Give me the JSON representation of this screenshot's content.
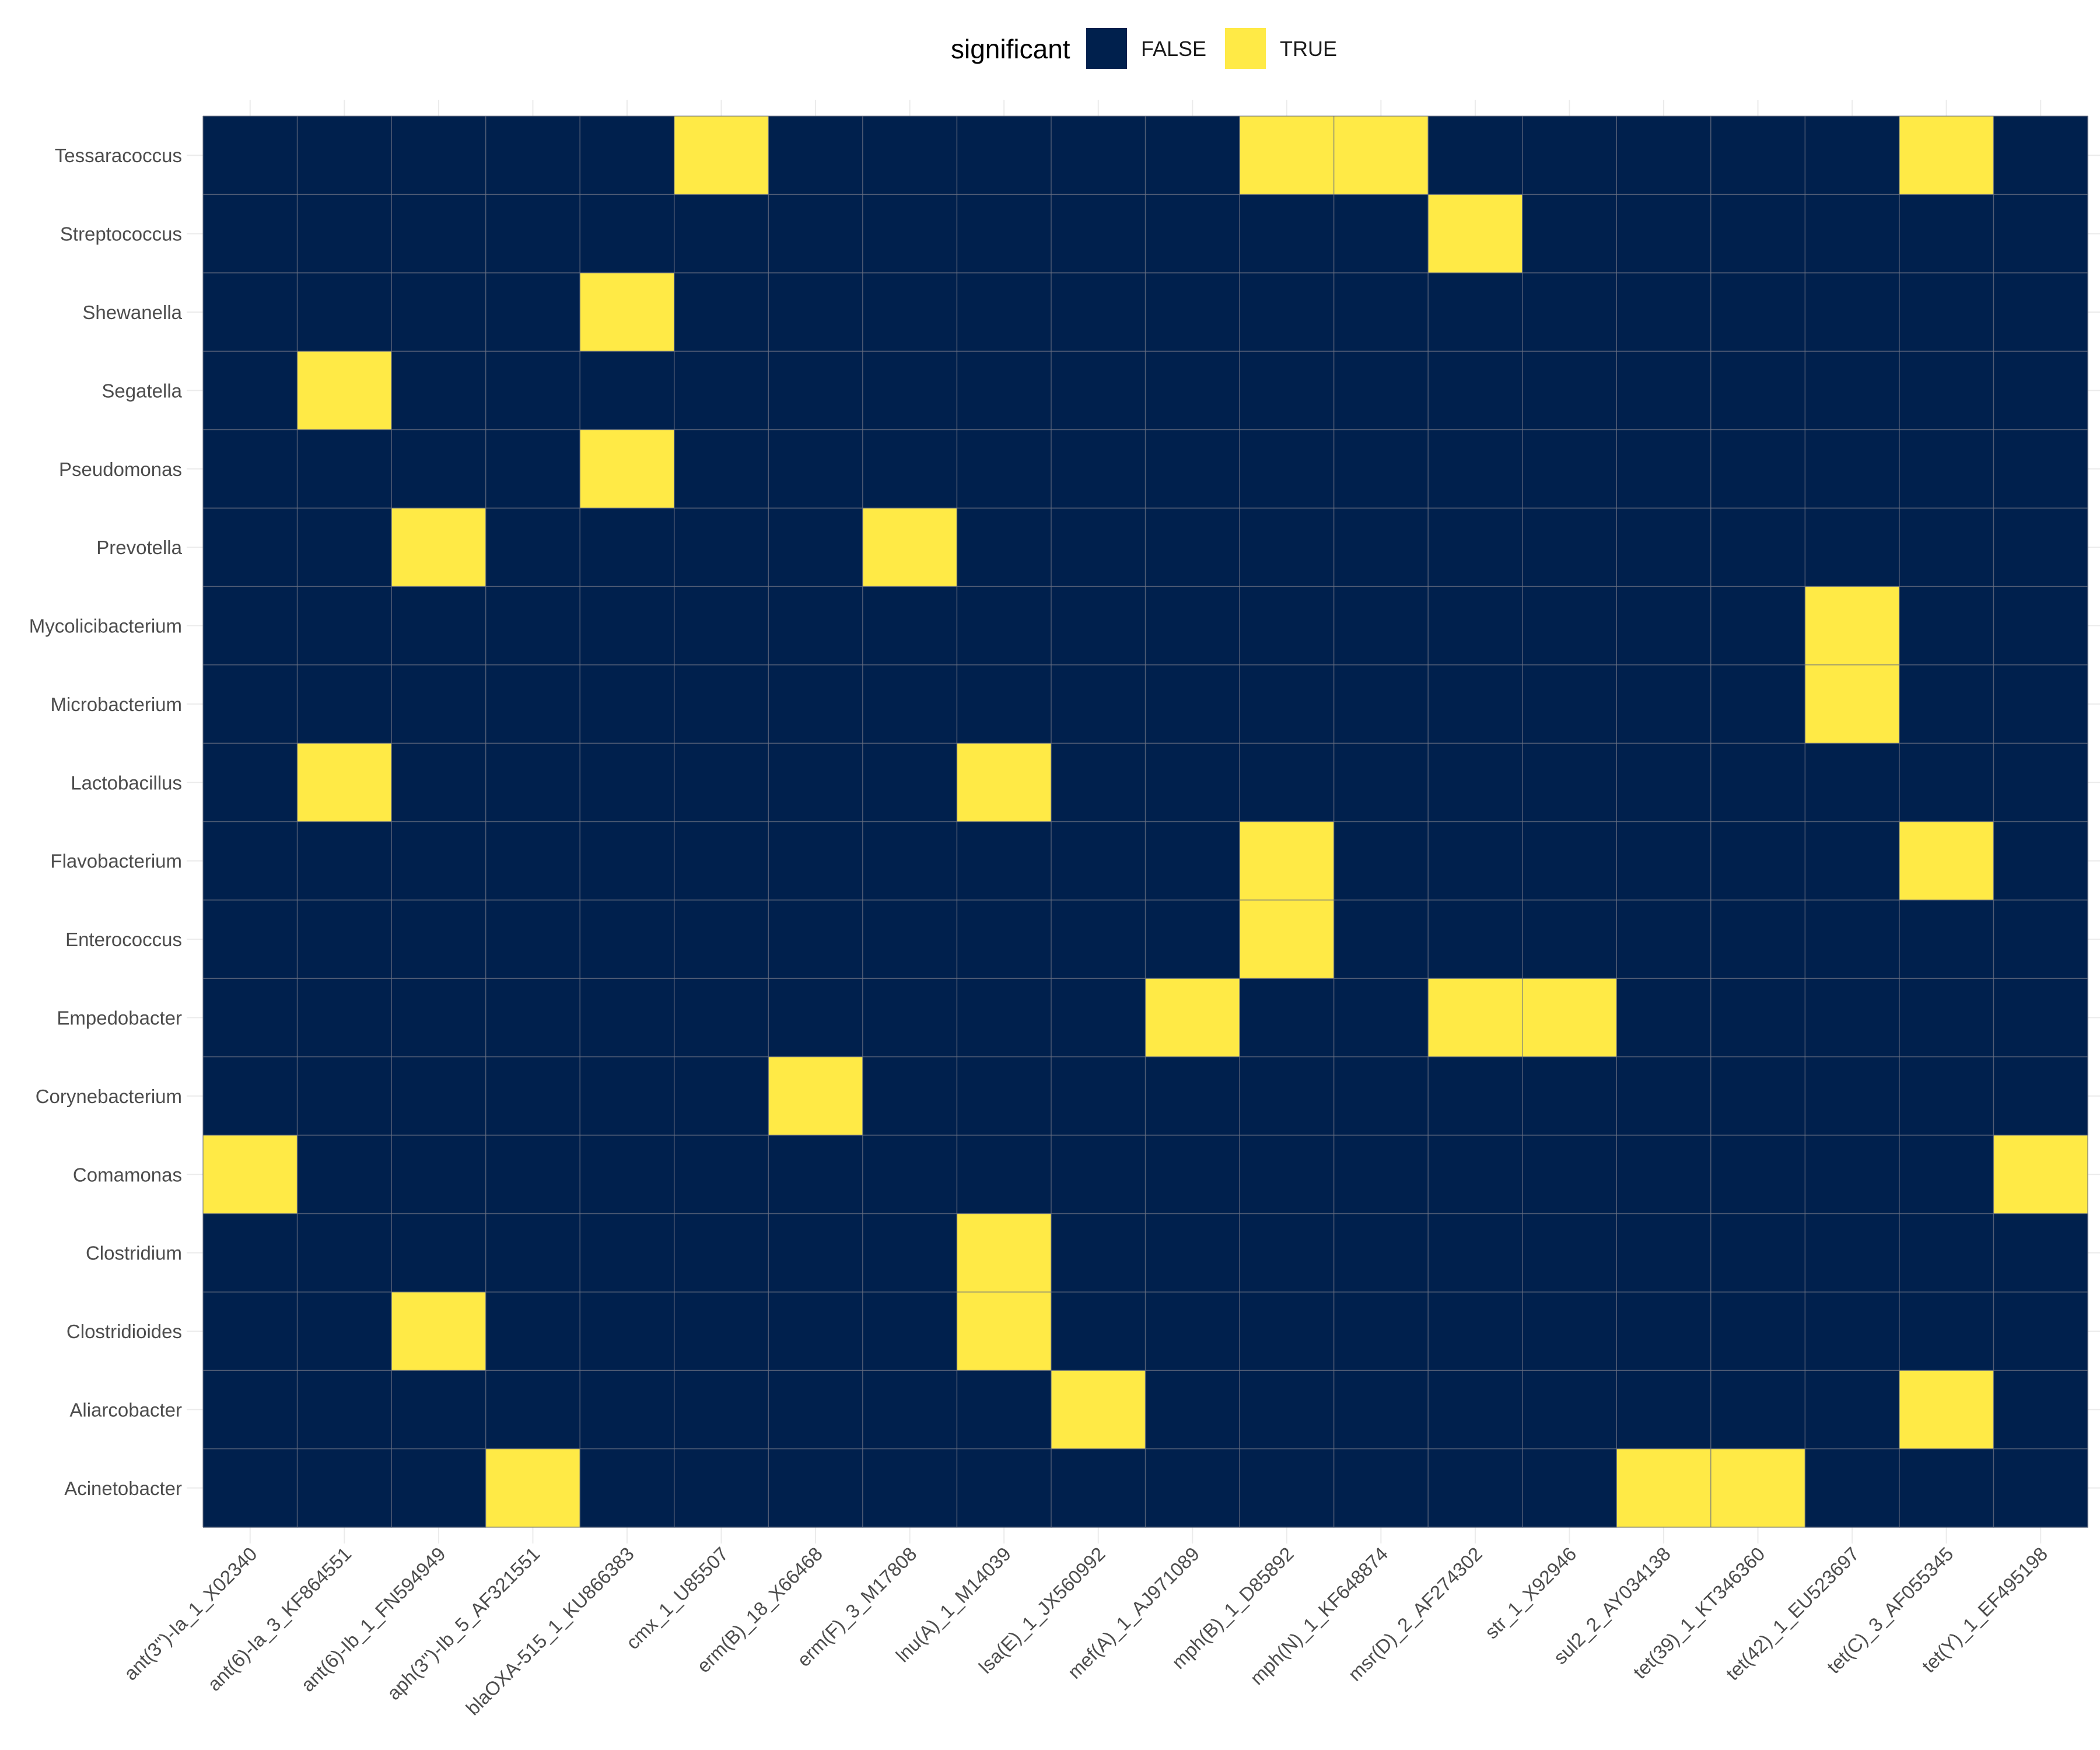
{
  "chart_data": {
    "type": "heatmap",
    "title": "",
    "xlabel": "",
    "ylabel": "",
    "legend": {
      "title": "significant",
      "position": "top",
      "entries": [
        {
          "label": "FALSE",
          "color": "#00204D"
        },
        {
          "label": "TRUE",
          "color": "#FFEA46"
        }
      ]
    },
    "grid": true,
    "x": [
      "ant(3'')-Ia_1_X02340",
      "ant(6)-Ia_3_KF864551",
      "ant(6)-Ib_1_FN594949",
      "aph(3'')-Ib_5_AF321551",
      "blaOXA-515_1_KU866383",
      "cmx_1_U85507",
      "erm(B)_18_X66468",
      "erm(F)_3_M17808",
      "lnu(A)_1_M14039",
      "lsa(E)_1_JX560992",
      "mef(A)_1_AJ971089",
      "mph(B)_1_D85892",
      "mph(N)_1_KF648874",
      "msr(D)_2_AF274302",
      "str_1_X92946",
      "sul2_2_AY034138",
      "tet(39)_1_KT346360",
      "tet(42)_1_EU523697",
      "tet(C)_3_AF055345",
      "tet(Y)_1_EF495198"
    ],
    "y": [
      "Tessaracoccus",
      "Streptococcus",
      "Shewanella",
      "Segatella",
      "Pseudomonas",
      "Prevotella",
      "Mycolicibacterium",
      "Microbacterium",
      "Lactobacillus",
      "Flavobacterium",
      "Enterococcus",
      "Empedobacter",
      "Corynebacterium",
      "Comamonas",
      "Clostridium",
      "Clostridioides",
      "Aliarcobacter",
      "Acinetobacter"
    ],
    "significant_cells": [
      {
        "y": "Tessaracoccus",
        "x": [
          "cmx_1_U85507",
          "mph(B)_1_D85892",
          "mph(N)_1_KF648874",
          "tet(C)_3_AF055345"
        ]
      },
      {
        "y": "Streptococcus",
        "x": [
          "msr(D)_2_AF274302"
        ]
      },
      {
        "y": "Shewanella",
        "x": [
          "blaOXA-515_1_KU866383"
        ]
      },
      {
        "y": "Segatella",
        "x": [
          "ant(6)-Ia_3_KF864551"
        ]
      },
      {
        "y": "Pseudomonas",
        "x": [
          "blaOXA-515_1_KU866383"
        ]
      },
      {
        "y": "Prevotella",
        "x": [
          "ant(6)-Ib_1_FN594949",
          "erm(F)_3_M17808"
        ]
      },
      {
        "y": "Mycolicibacterium",
        "x": [
          "tet(42)_1_EU523697"
        ]
      },
      {
        "y": "Microbacterium",
        "x": [
          "tet(42)_1_EU523697"
        ]
      },
      {
        "y": "Lactobacillus",
        "x": [
          "ant(6)-Ia_3_KF864551",
          "lnu(A)_1_M14039"
        ]
      },
      {
        "y": "Flavobacterium",
        "x": [
          "mph(B)_1_D85892",
          "tet(C)_3_AF055345"
        ]
      },
      {
        "y": "Enterococcus",
        "x": [
          "mph(B)_1_D85892"
        ]
      },
      {
        "y": "Empedobacter",
        "x": [
          "mef(A)_1_AJ971089",
          "msr(D)_2_AF274302",
          "str_1_X92946"
        ]
      },
      {
        "y": "Corynebacterium",
        "x": [
          "erm(B)_18_X66468"
        ]
      },
      {
        "y": "Comamonas",
        "x": [
          "ant(3'')-Ia_1_X02340",
          "tet(Y)_1_EF495198"
        ]
      },
      {
        "y": "Clostridium",
        "x": [
          "lnu(A)_1_M14039"
        ]
      },
      {
        "y": "Clostridioides",
        "x": [
          "ant(6)-Ib_1_FN594949",
          "lnu(A)_1_M14039"
        ]
      },
      {
        "y": "Aliarcobacter",
        "x": [
          "lsa(E)_1_JX560992",
          "tet(C)_3_AF055345"
        ]
      },
      {
        "y": "Acinetobacter",
        "x": [
          "aph(3'')-Ib_5_AF321551",
          "sul2_2_AY034138",
          "tet(39)_1_KT346360"
        ]
      }
    ]
  }
}
